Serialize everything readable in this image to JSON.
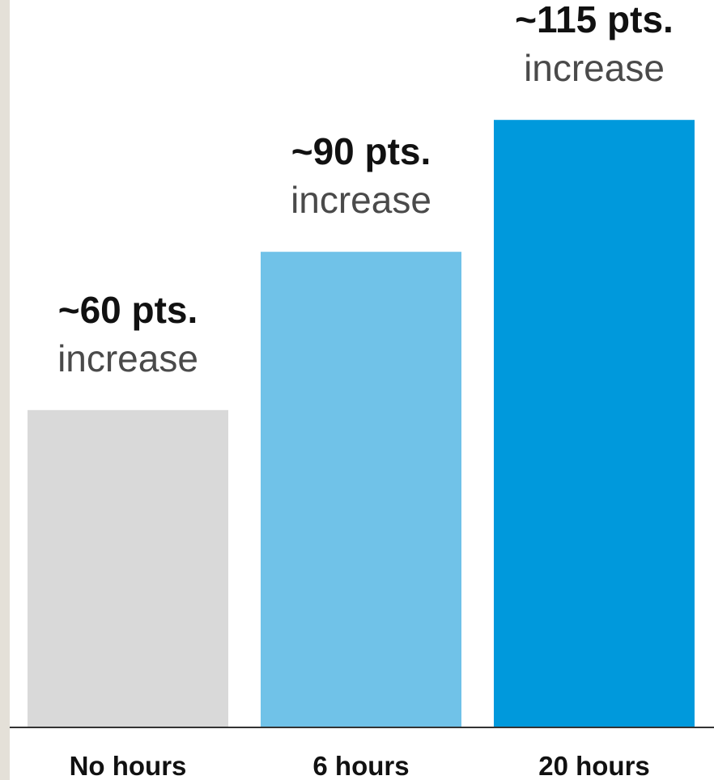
{
  "chart_data": {
    "type": "bar",
    "title": "",
    "xlabel": "",
    "ylabel": "",
    "categories": [
      "No hours",
      "6 hours",
      "20 hours"
    ],
    "values": [
      60,
      90,
      115
    ],
    "value_labels": [
      "~60 pts.",
      "~90 pts.",
      "~115 pts."
    ],
    "value_sublabel": "increase",
    "colors": [
      "#d9d9d9",
      "#70c2e8",
      "#0099dc"
    ],
    "ylim": [
      0,
      120
    ],
    "grid": false,
    "axis_line_color": "#333333"
  }
}
